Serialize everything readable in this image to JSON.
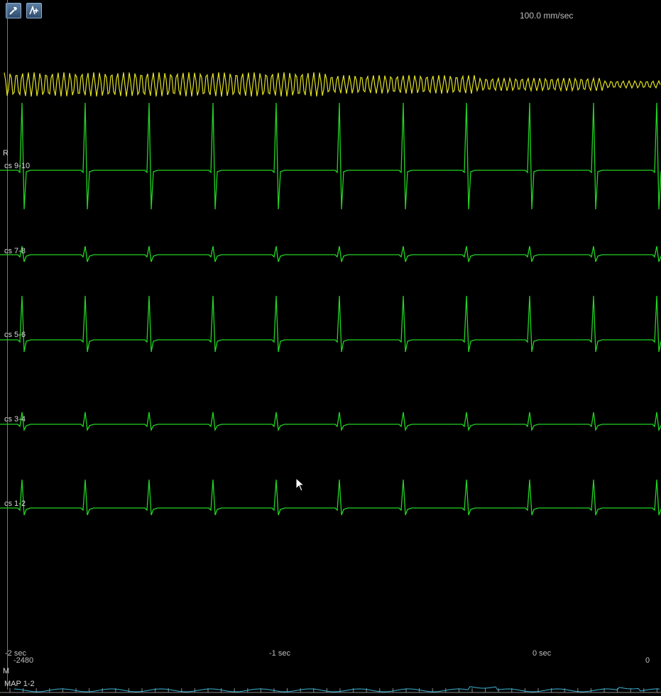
{
  "toolbar": {
    "buttons": [
      {
        "icon": "hammer-icon"
      },
      {
        "icon": "add-caliper-icon"
      }
    ]
  },
  "sweep_speed": "100.0 mm/sec",
  "group_labels": {
    "r": "R",
    "m": "M"
  },
  "channels": [
    {
      "label": "cs 9-10",
      "color": "#22d422"
    },
    {
      "label": "cs 7-8",
      "color": "#22d422"
    },
    {
      "label": "cs 5-6",
      "color": "#22d422"
    },
    {
      "label": "cs 3-4",
      "color": "#22d422"
    },
    {
      "label": "cs 1-2",
      "color": "#22d422"
    }
  ],
  "reference_trace": {
    "color": "#e3e322"
  },
  "map_channel": {
    "label": "MAP 1-2",
    "color": "#3bb3d6"
  },
  "time_axis": {
    "labels": [
      "-2 sec",
      "-1 sec",
      "0 sec"
    ],
    "left_value": "-2480",
    "right_value": "0"
  }
}
